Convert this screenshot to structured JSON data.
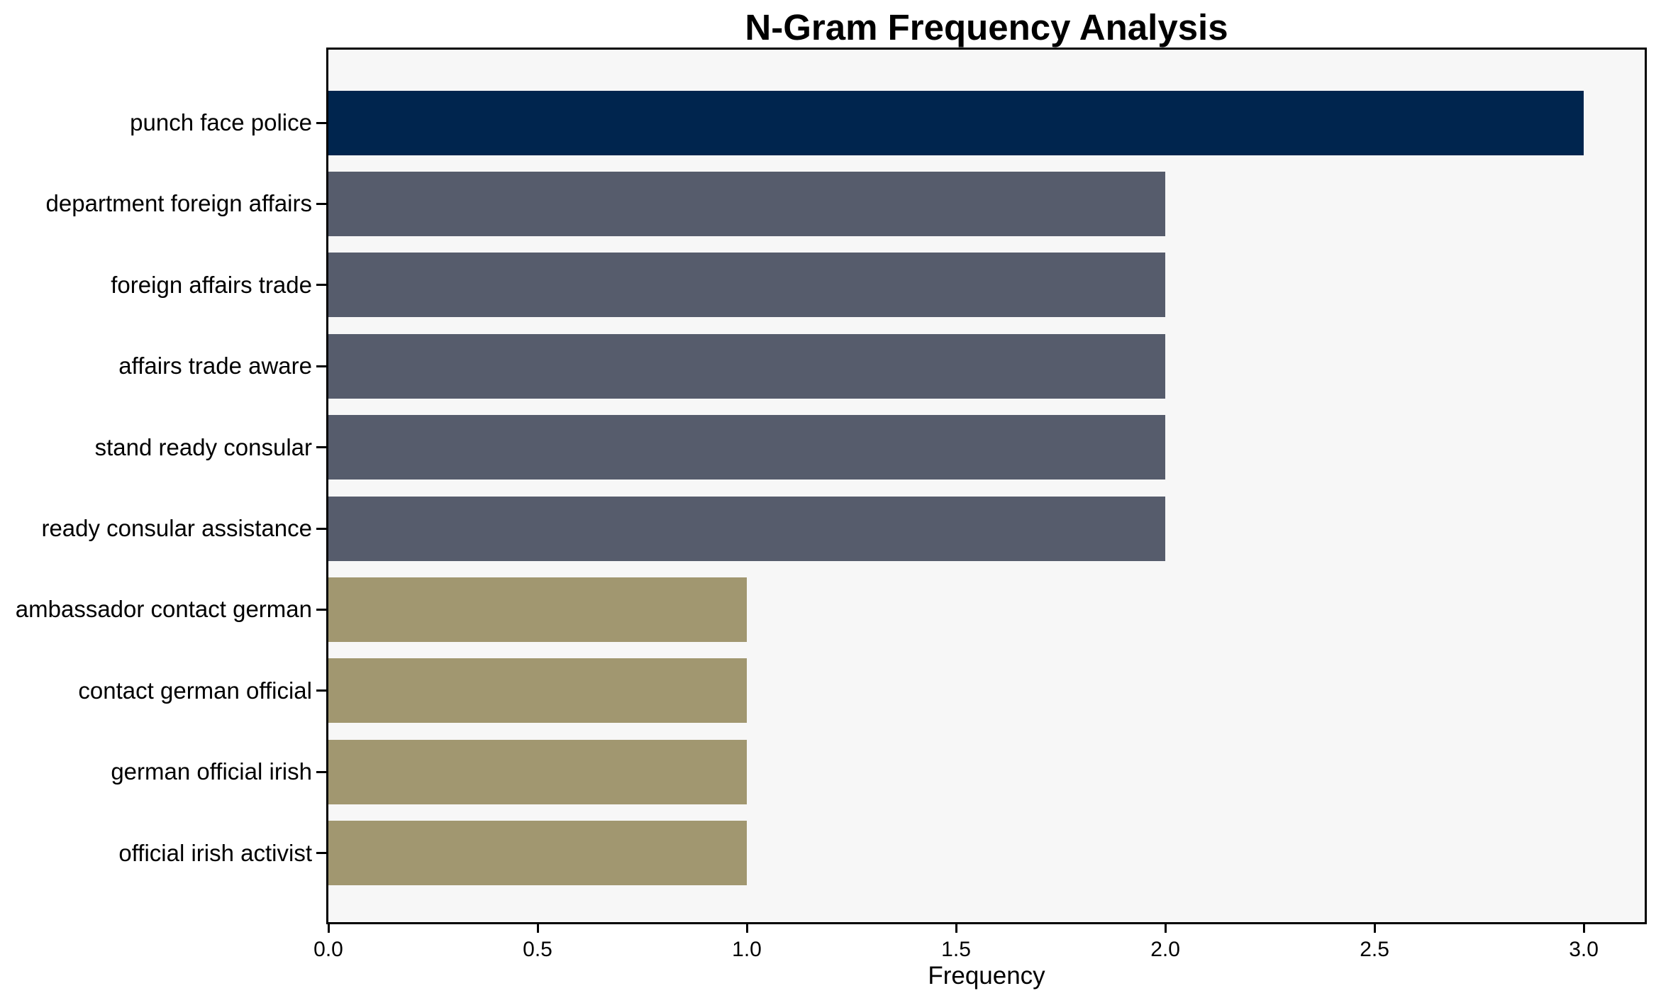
{
  "page": {
    "background": "#ffffff"
  },
  "chart_data": {
    "type": "bar",
    "orientation": "horizontal",
    "title": "N-Gram Frequency Analysis",
    "xlabel": "Frequency",
    "ylabel": "",
    "categories": [
      "punch face police",
      "department foreign affairs",
      "foreign affairs trade",
      "affairs trade aware",
      "stand ready consular",
      "ready consular assistance",
      "ambassador contact german",
      "contact german official",
      "german official irish",
      "official irish activist"
    ],
    "values": [
      3,
      2,
      2,
      2,
      2,
      2,
      1,
      1,
      1,
      1
    ],
    "bar_colors": [
      "#00254e",
      "#565c6c",
      "#565c6c",
      "#565c6c",
      "#565c6c",
      "#565c6c",
      "#a19770",
      "#a19770",
      "#a19770",
      "#a19770"
    ],
    "xlim": [
      0,
      3.1456
    ],
    "xticks": [
      0.0,
      0.5,
      1.0,
      1.5,
      2.0,
      2.5,
      3.0
    ],
    "xtick_labels": [
      "0.0",
      "0.5",
      "1.0",
      "1.5",
      "2.0",
      "2.5",
      "3.0"
    ],
    "grid": false,
    "legend_position": "none",
    "plot_background": "#f7f7f7",
    "spine_color": "#000000",
    "text_color": "#000000"
  }
}
